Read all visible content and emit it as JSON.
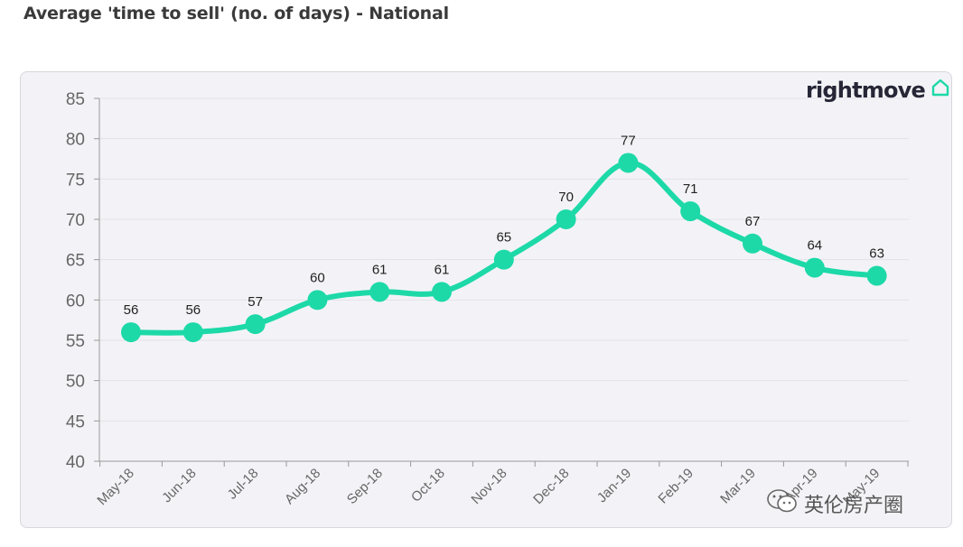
{
  "page": {
    "title": "Average 'time to sell' (no. of days) - National",
    "brand": "rightmove",
    "watermark": "英伦房产圈"
  },
  "colors": {
    "line": "#1dd9a8",
    "card_bg": "#f3f3f7",
    "brand_icon": "#1dd9a8"
  },
  "icons": {
    "brand": "house-outline-icon",
    "watermark": "wechat-icon"
  },
  "chart_data": {
    "type": "line",
    "title": "Average 'time to sell' (no. of days) - National",
    "categories": [
      "May-18",
      "Jun-18",
      "Jul-18",
      "Aug-18",
      "Sep-18",
      "Oct-18",
      "Nov-18",
      "Dec-18",
      "Jan-19",
      "Feb-19",
      "Mar-19",
      "Apr-19",
      "May-19"
    ],
    "series": [
      {
        "values": [
          56,
          56,
          57,
          60,
          61,
          61,
          65,
          70,
          77,
          71,
          67,
          64,
          63
        ]
      }
    ],
    "data_labels": [
      "56",
      "56",
      "57",
      "60",
      "61",
      "61",
      "65",
      "70",
      "77",
      "71",
      "67",
      "64",
      "63"
    ],
    "y_ticks": [
      40,
      45,
      50,
      55,
      60,
      65,
      70,
      75,
      80,
      85
    ],
    "ylim": [
      40,
      85
    ],
    "grid": true,
    "xlabel": "",
    "ylabel": "",
    "legend": "none",
    "smooth": true
  }
}
